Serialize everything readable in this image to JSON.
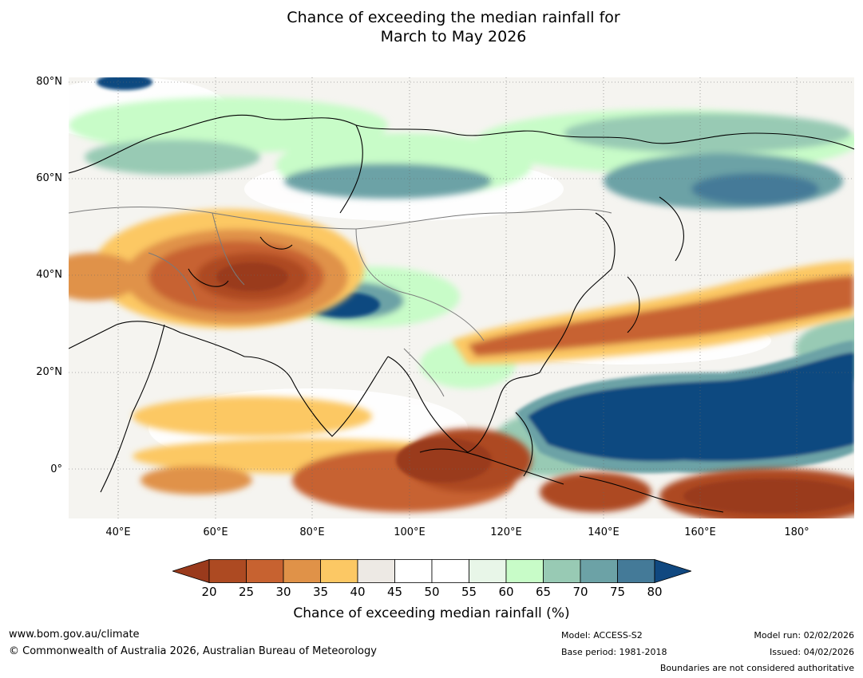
{
  "title": {
    "line1": "Chance of exceeding the median rainfall for",
    "line2": "March to May 2026"
  },
  "map": {
    "lat_labels": [
      "80°N",
      "60°N",
      "40°N",
      "20°N",
      "0°"
    ],
    "lon_labels": [
      "40°E",
      "60°E",
      "80°E",
      "100°E",
      "120°E",
      "140°E",
      "160°E",
      "180°"
    ]
  },
  "colorbar": {
    "ticks": [
      "20",
      "25",
      "30",
      "35",
      "40",
      "45",
      "50",
      "55",
      "60",
      "65",
      "70",
      "75",
      "80"
    ],
    "colors": [
      "#9a3a1c",
      "#ad4a22",
      "#c76230",
      "#e09248",
      "#fcc864",
      "#ede9e4",
      "#ffffff",
      "#ffffff",
      "#e8f6e8",
      "#c8fcc8",
      "#98cab4",
      "#6ca2a6",
      "#447a98",
      "#104880"
    ],
    "label": "Chance of exceeding median rainfall (%)"
  },
  "footer": {
    "website": "www.bom.gov.au/climate",
    "copyright": "© Commonwealth of Australia 2026, Australian Bureau of Meteorology",
    "model": "Model: ACCESS-S2",
    "base_period": "Base period: 1981-2018",
    "model_run": "Model run: 02/02/2026",
    "issued": "Issued: 04/02/2026",
    "boundaries": "Boundaries are not considered authoritative"
  }
}
